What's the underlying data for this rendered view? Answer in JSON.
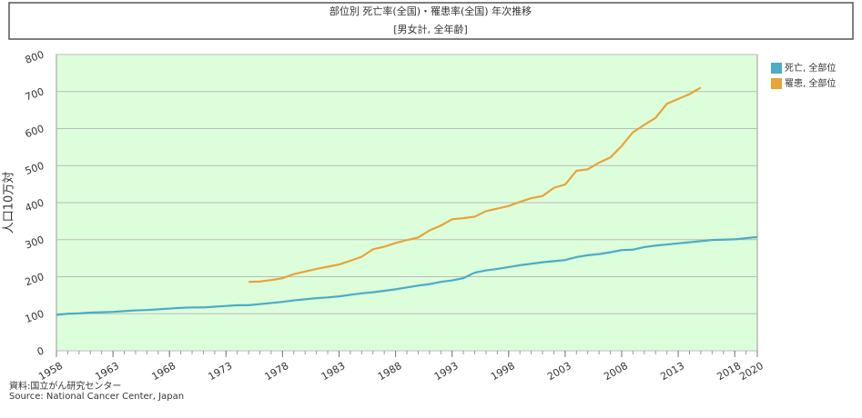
{
  "chart_data": {
    "type": "line",
    "title": "部位別 死亡率(全国)・罹患率(全国) 年次推移",
    "subtitle": "[男女計, 全年齢]",
    "y_label": "人口10万対",
    "source": [
      "資料:国立がん研究センター",
      "Source: National Cancer Center, Japan"
    ],
    "x": [
      1958,
      1959,
      1960,
      1961,
      1962,
      1963,
      1964,
      1965,
      1966,
      1967,
      1968,
      1969,
      1970,
      1971,
      1972,
      1973,
      1974,
      1975,
      1976,
      1977,
      1978,
      1979,
      1980,
      1981,
      1982,
      1983,
      1984,
      1985,
      1986,
      1987,
      1988,
      1989,
      1990,
      1991,
      1992,
      1993,
      1994,
      1995,
      1996,
      1997,
      1998,
      1999,
      2000,
      2001,
      2002,
      2003,
      2004,
      2005,
      2006,
      2007,
      2008,
      2009,
      2010,
      2011,
      2012,
      2013,
      2014,
      2015,
      2016,
      2017,
      2018,
      2019,
      2020
    ],
    "xlim": [
      1958,
      2020
    ],
    "xticks": [
      1958,
      1963,
      1968,
      1973,
      1978,
      1983,
      1988,
      1993,
      1998,
      2003,
      2008,
      2013,
      2018,
      2020
    ],
    "ylim": [
      0,
      800
    ],
    "yticks": [
      0,
      100,
      200,
      300,
      400,
      500,
      600,
      700,
      800
    ],
    "grid": true,
    "legend": "right",
    "series": [
      {
        "name": "死亡, 全部位",
        "color": "#4bacc6",
        "values": [
          97,
          100,
          101,
          103,
          104,
          105,
          107,
          109,
          110,
          112,
          114,
          116,
          117,
          117,
          119,
          121,
          123,
          123,
          126,
          129,
          132,
          136,
          139,
          142,
          144,
          147,
          151,
          155,
          158,
          162,
          166,
          171,
          176,
          180,
          186,
          190,
          196,
          211,
          217,
          221,
          226,
          231,
          235,
          239,
          242,
          245,
          253,
          258,
          261,
          266,
          272,
          273,
          280,
          284,
          287,
          290,
          293,
          296,
          299,
          300,
          301,
          304,
          307
        ]
      },
      {
        "name": "罹患, 全部位",
        "color": "#e8a33a",
        "values": [
          null,
          null,
          null,
          null,
          null,
          null,
          null,
          null,
          null,
          null,
          null,
          null,
          null,
          null,
          null,
          null,
          null,
          186,
          187,
          191,
          196,
          207,
          214,
          221,
          227,
          233,
          243,
          254,
          274,
          281,
          291,
          299,
          306,
          325,
          338,
          355,
          358,
          362,
          377,
          384,
          391,
          402,
          412,
          418,
          440,
          449,
          486,
          490,
          508,
          522,
          553,
          590,
          610,
          629,
          667,
          680,
          693,
          711,
          null,
          null,
          null,
          null,
          null
        ]
      }
    ]
  }
}
